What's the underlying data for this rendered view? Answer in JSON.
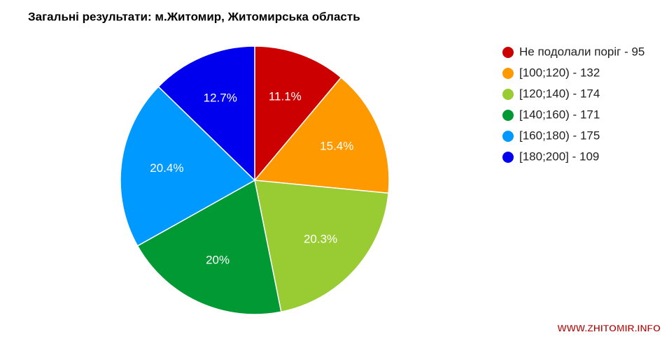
{
  "chart_data": {
    "type": "pie",
    "title": "Загальні результати: м.Житомир, Житомирська область",
    "categories": [
      "Не подолали поріг - 95",
      "[100;120) - 132",
      "[120;140) - 174",
      "[140;160) - 171",
      "[160;180) - 175",
      "[180;200] - 109"
    ],
    "values": [
      11.1,
      15.4,
      20.3,
      20,
      20.4,
      12.7
    ],
    "value_labels": [
      "11.1%",
      "15.4%",
      "20.3%",
      "20%",
      "20.4%",
      "12.7%"
    ],
    "colors": [
      "#cc0000",
      "#ff9900",
      "#99cc33",
      "#009933",
      "#0099ff",
      "#0000ee"
    ],
    "legend": "right",
    "watermark": "WWW.ZHITOMIR.INFO"
  }
}
